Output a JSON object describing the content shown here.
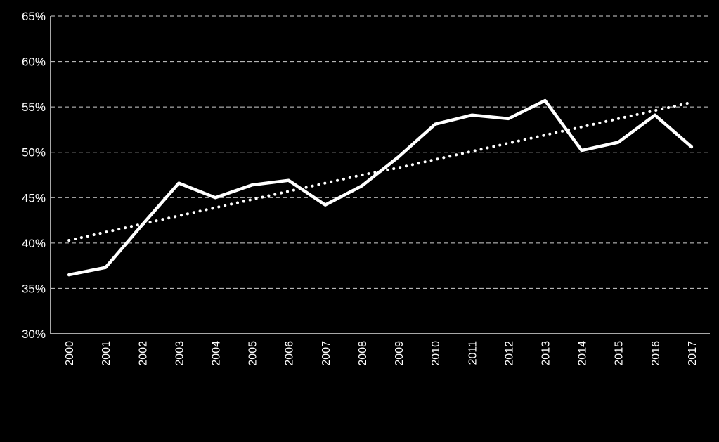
{
  "chart_data": {
    "type": "line",
    "title": "",
    "xlabel": "",
    "ylabel": "",
    "categories": [
      "2000",
      "2001",
      "2002",
      "2003",
      "2004",
      "2005",
      "2006",
      "2007",
      "2008",
      "2009",
      "2010",
      "2011",
      "2012",
      "2013",
      "2014",
      "2015",
      "2016",
      "2017"
    ],
    "y_tick_labels": [
      "30%",
      "35%",
      "40%",
      "45%",
      "50%",
      "55%",
      "60%",
      "65%"
    ],
    "ylim": [
      30,
      65
    ],
    "y_unit": "%",
    "grid": "horizontal dashed",
    "background_color": "#000000",
    "foreground_color": "#ffffff",
    "series": [
      {
        "style": "solid",
        "values": [
          36.5,
          37.3,
          42.0,
          46.6,
          45.0,
          46.4,
          46.9,
          44.2,
          46.3,
          49.5,
          53.1,
          54.1,
          53.7,
          55.7,
          50.2,
          51.1,
          54.1,
          50.6
        ]
      },
      {
        "style": "dotted",
        "trendline": true,
        "values": [
          40.3,
          41.2,
          42.1,
          43.0,
          43.9,
          44.8,
          45.7,
          46.6,
          47.5,
          48.3,
          49.2,
          50.1,
          51.0,
          51.9,
          52.8,
          53.7,
          54.6,
          55.5
        ]
      }
    ]
  }
}
